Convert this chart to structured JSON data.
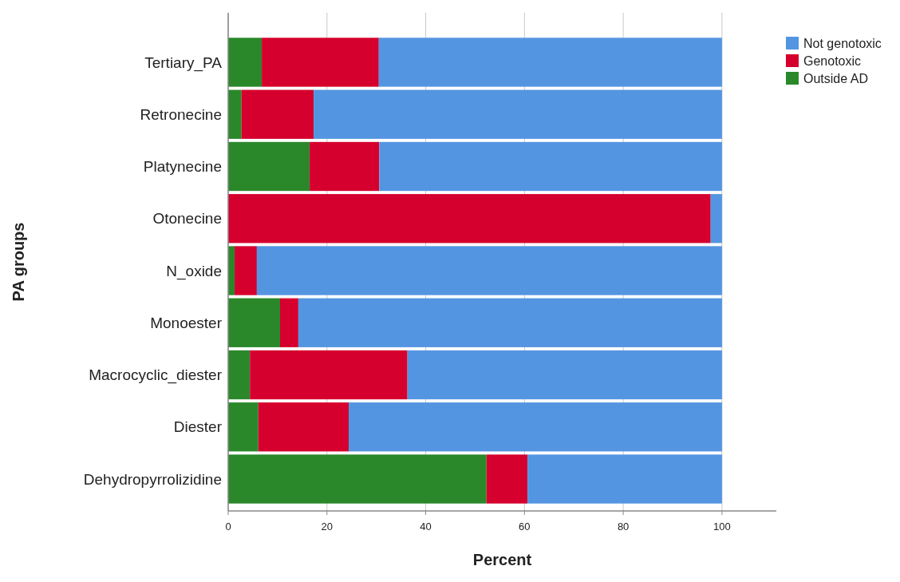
{
  "chart_data": {
    "type": "bar",
    "orientation": "horizontal",
    "stacked": true,
    "xlabel": "Percent",
    "ylabel": "PA groups",
    "categories": [
      "Tertiary_PA",
      "Retronecine",
      "Platynecine",
      "Otonecine",
      "N_oxide",
      "Monoester",
      "Macrocyclic_diester",
      "Diester",
      "Dehydropyrrolizidine"
    ],
    "series": [
      {
        "name": "Outside AD",
        "color": "#2a882a",
        "values": [
          6.8,
          2.7,
          16.5,
          0,
          1.3,
          10.5,
          4.4,
          6.1,
          52.3
        ]
      },
      {
        "name": "Genotoxic",
        "color": "#d5002d",
        "values": [
          23.7,
          14.6,
          14.1,
          97.7,
          4.5,
          3.7,
          31.9,
          18.3,
          8.3
        ]
      },
      {
        "name": "Not genotoxic",
        "color": "#5495e2",
        "values": [
          69.5,
          82.7,
          69.4,
          2.3,
          94.2,
          85.8,
          63.7,
          75.6,
          39.4
        ]
      }
    ],
    "xlim": [
      0,
      111
    ],
    "xticks": [
      0,
      20,
      40,
      60,
      80,
      100
    ],
    "grid": "x",
    "legend": "top right"
  }
}
